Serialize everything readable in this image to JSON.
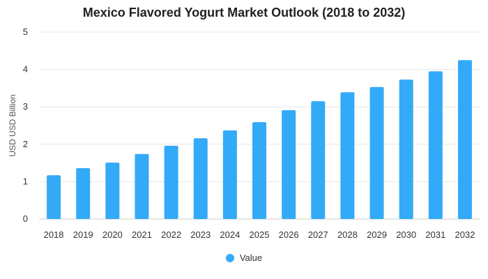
{
  "chart_data": {
    "type": "bar",
    "title": "Mexico Flavored Yogurt Market Outlook (2018 to 2032)",
    "xlabel": "",
    "ylabel": "USD USD Billion",
    "categories": [
      "2018",
      "2019",
      "2020",
      "2021",
      "2022",
      "2023",
      "2024",
      "2025",
      "2026",
      "2027",
      "2028",
      "2029",
      "2030",
      "2031",
      "2032"
    ],
    "series": [
      {
        "name": "Value",
        "color": "#33aaf7",
        "values": [
          1.17,
          1.36,
          1.51,
          1.74,
          1.96,
          2.16,
          2.37,
          2.59,
          2.91,
          3.15,
          3.39,
          3.53,
          3.73,
          3.95,
          4.25
        ]
      }
    ],
    "ylim": [
      0,
      5
    ],
    "yticks": [
      "0",
      "1",
      "2",
      "3",
      "4",
      "5"
    ],
    "grid": true,
    "legend_position": "bottom"
  }
}
